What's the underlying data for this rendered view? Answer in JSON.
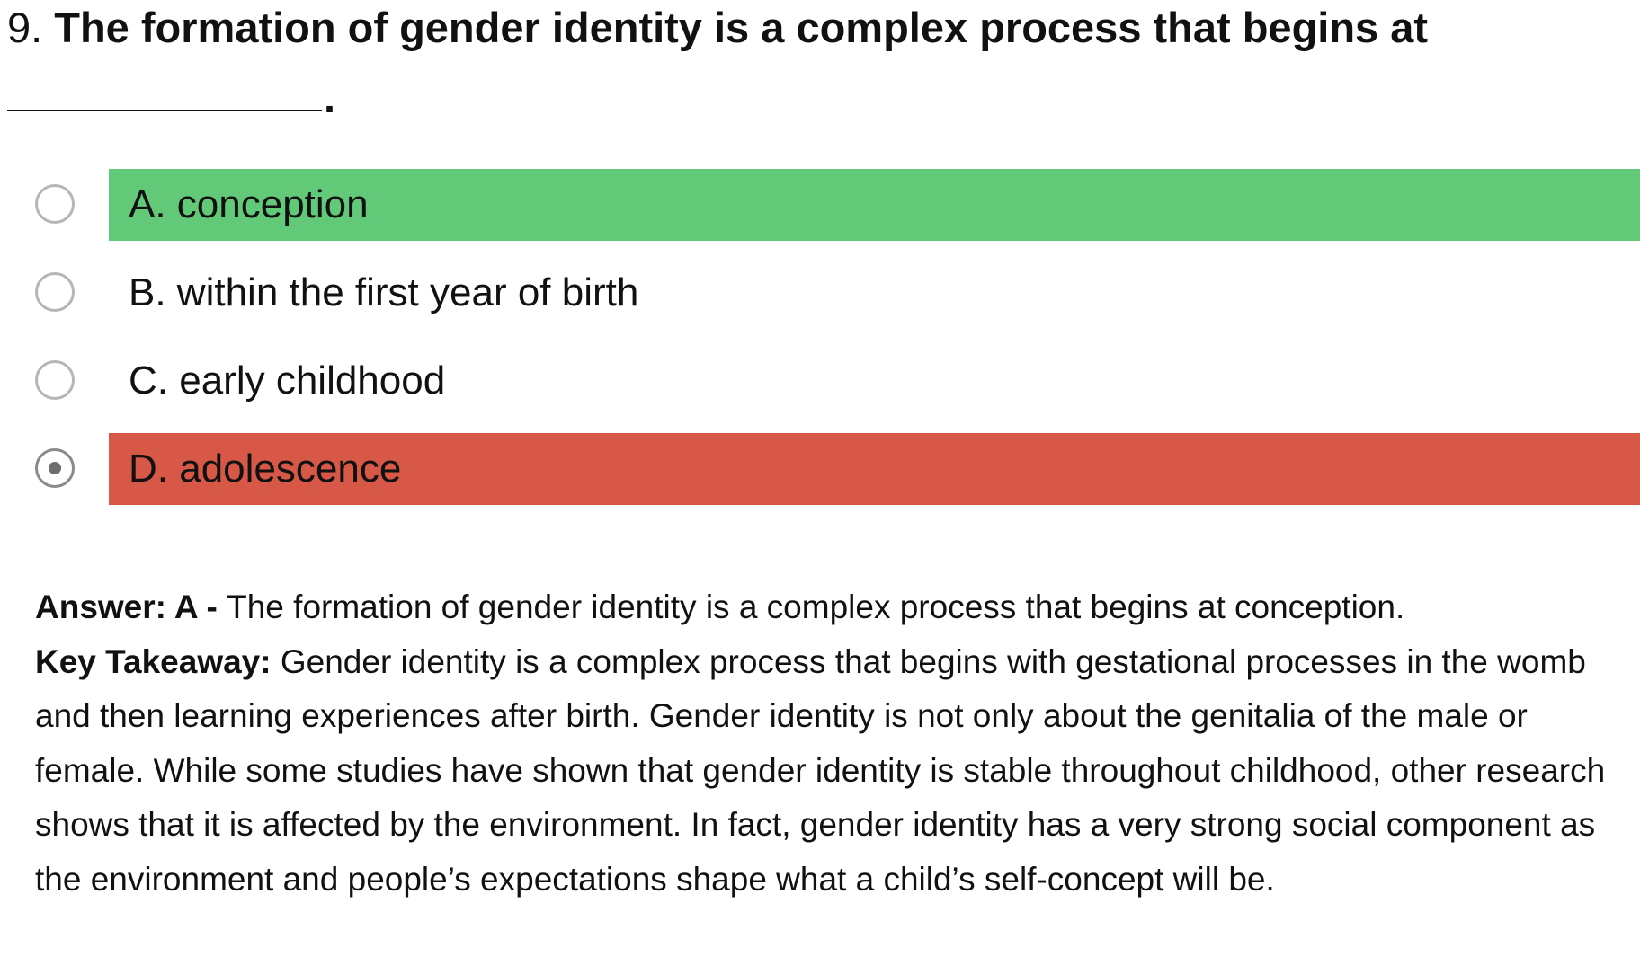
{
  "question": {
    "number": "9. ",
    "text": "The formation of gender identity is a complex process that begins at",
    "blank_end": "."
  },
  "options": [
    {
      "label": "A. conception",
      "state": "correct"
    },
    {
      "label": "B. within the first year of birth",
      "state": "none"
    },
    {
      "label": "C. early childhood",
      "state": "none"
    },
    {
      "label": "D. adolescence",
      "state": "wrong",
      "selected": true
    }
  ],
  "colors": {
    "correct": "#62c979",
    "wrong": "#d75846"
  },
  "answer": {
    "prefix": "Answer: A - ",
    "text": "The formation of gender identity is a complex process that begins at conception."
  },
  "takeaway": {
    "prefix": "Key Takeaway: ",
    "text": "Gender identity is a complex process that begins with gestational processes in the womb and then learning experiences after birth. Gender identity is not only about the genitalia of the male or female. While some studies have shown that gender identity is stable throughout childhood, other research shows that it is affected by the environment. In fact, gender identity has a very strong social component as the environment and people’s expectations shape what a child’s self-concept will be."
  }
}
